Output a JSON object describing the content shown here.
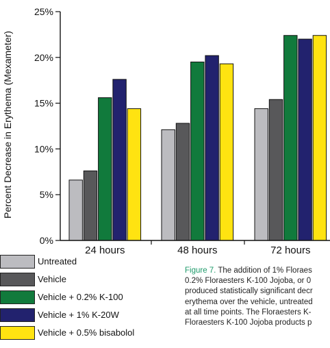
{
  "chart_data": {
    "type": "bar",
    "ylabel": "Percent Decrease in Erythema (Mexameter)",
    "xlabel": "",
    "ylim": [
      0,
      25
    ],
    "yticks": [
      "0%",
      "5%",
      "10%",
      "15%",
      "20%",
      "25%"
    ],
    "categories": [
      "24 hours",
      "48 hours",
      "72 hours"
    ],
    "series": [
      {
        "name": "Untreated",
        "color": "#bcbcc0",
        "values": [
          6.6,
          12.1,
          14.4
        ]
      },
      {
        "name": "Vehicle",
        "color": "#58585a",
        "values": [
          7.6,
          12.8,
          15.4
        ]
      },
      {
        "name": "Vehicle + 0.2% K-100",
        "color": "#117a3c",
        "values": [
          15.6,
          19.5,
          22.4
        ]
      },
      {
        "name": "Vehicle + 1% K-20W",
        "color": "#22226e",
        "values": [
          17.6,
          20.2,
          22.0
        ]
      },
      {
        "name": "Vehicle + 0.5% bisabolol",
        "color": "#ffe311",
        "values": [
          14.4,
          19.3,
          22.4
        ]
      }
    ]
  },
  "caption": {
    "label": "Figure 7.",
    "lines": [
      " The addition of 1% Floraes",
      "0.2% Floraesters K-100 Jojoba, or 0",
      "produced statistically significant decr",
      "erythema over the vehicle, untreated",
      "at all time points. The Floraesters K-",
      "Floraesters K-100 Jojoba products p"
    ]
  }
}
